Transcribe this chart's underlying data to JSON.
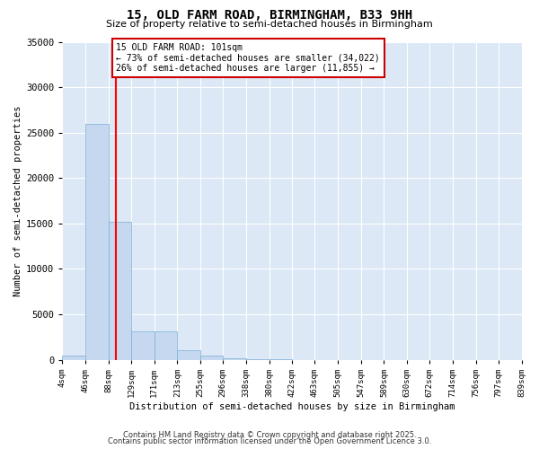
{
  "title": "15, OLD FARM ROAD, BIRMINGHAM, B33 9HH",
  "subtitle": "Size of property relative to semi-detached houses in Birmingham",
  "xlabel": "Distribution of semi-detached houses by size in Birmingham",
  "ylabel": "Number of semi-detached properties",
  "bar_values": [
    500,
    26000,
    15200,
    3100,
    3100,
    1100,
    500,
    200,
    50,
    20,
    10,
    5,
    2,
    1,
    0,
    0,
    0,
    0,
    0,
    0
  ],
  "bin_edges": [
    4,
    46,
    88,
    129,
    171,
    213,
    255,
    296,
    338,
    380,
    422,
    463,
    505,
    547,
    589,
    630,
    672,
    714,
    756,
    797,
    839
  ],
  "tick_labels": [
    "4sqm",
    "46sqm",
    "88sqm",
    "129sqm",
    "171sqm",
    "213sqm",
    "255sqm",
    "296sqm",
    "338sqm",
    "380sqm",
    "422sqm",
    "463sqm",
    "505sqm",
    "547sqm",
    "589sqm",
    "630sqm",
    "672sqm",
    "714sqm",
    "756sqm",
    "797sqm",
    "839sqm"
  ],
  "bar_color": "#c5d8f0",
  "bar_edge_color": "#7aafd4",
  "red_line_x": 101,
  "annotation_title": "15 OLD FARM ROAD: 101sqm",
  "annotation_line1": "← 73% of semi-detached houses are smaller (34,022)",
  "annotation_line2": "26% of semi-detached houses are larger (11,855) →",
  "annotation_box_facecolor": "#ffffff",
  "annotation_box_edgecolor": "#cc0000",
  "ylim": [
    0,
    35000
  ],
  "yticks": [
    0,
    5000,
    10000,
    15000,
    20000,
    25000,
    30000,
    35000
  ],
  "fig_facecolor": "#ffffff",
  "axes_facecolor": "#dce8f5",
  "grid_color": "#ffffff",
  "footer1": "Contains HM Land Registry data © Crown copyright and database right 2025.",
  "footer2": "Contains public sector information licensed under the Open Government Licence 3.0."
}
